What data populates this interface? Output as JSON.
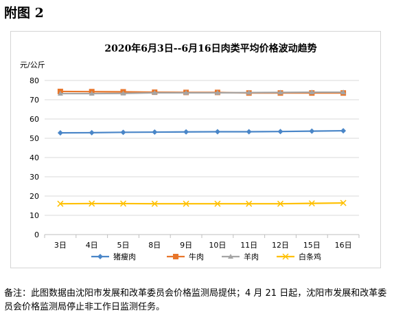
{
  "figure_label": "附图 2",
  "footnote": "备注：此图数据由沈阳市发展和改革委员会价格监测局提供；4 月 21 日起，沈阳市发展和改革委员会价格监测局停止非工作日监测任务。",
  "chart_data": {
    "type": "line",
    "title": "2020年6月3日--6月16日肉类平均价格波动趋势",
    "unit_label": "元/公斤",
    "xlabel": "",
    "ylabel": "元/公斤",
    "categories": [
      "3日",
      "4日",
      "5日",
      "8日",
      "9日",
      "10日",
      "11日",
      "12日",
      "15日",
      "16日"
    ],
    "ylim": [
      0,
      80
    ],
    "yticks": [
      0,
      10,
      20,
      30,
      40,
      50,
      60,
      70,
      80
    ],
    "grid": true,
    "legend_position": "bottom",
    "series": [
      {
        "name": "猪瘦肉",
        "color": "#4a86c8",
        "marker": "diamond",
        "values": [
          52.8,
          52.9,
          53.1,
          53.2,
          53.3,
          53.4,
          53.4,
          53.5,
          53.7,
          53.9
        ]
      },
      {
        "name": "牛肉",
        "color": "#e8762b",
        "marker": "square",
        "values": [
          74.3,
          74.2,
          74.1,
          73.9,
          73.8,
          73.8,
          73.5,
          73.5,
          73.5,
          73.5
        ]
      },
      {
        "name": "羊肉",
        "color": "#a5a5a5",
        "marker": "triangle",
        "values": [
          73.2,
          73.2,
          73.3,
          73.6,
          73.6,
          73.6,
          73.7,
          73.8,
          73.9,
          73.9
        ]
      },
      {
        "name": "白条鸡",
        "color": "#ffc000",
        "marker": "x",
        "values": [
          16.0,
          16.1,
          16.1,
          16.0,
          16.0,
          16.0,
          16.0,
          16.0,
          16.2,
          16.4
        ]
      }
    ]
  }
}
